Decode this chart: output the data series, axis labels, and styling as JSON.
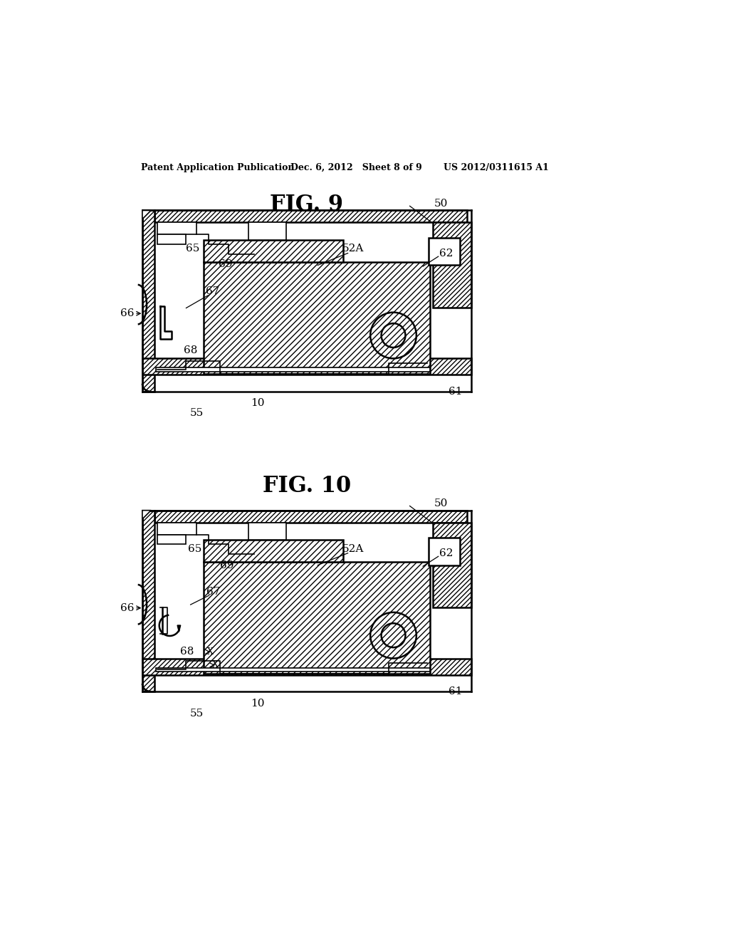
{
  "header_left": "Patent Application Publication",
  "header_mid": "Dec. 6, 2012   Sheet 8 of 9",
  "header_right": "US 2012/0311615 A1",
  "fig9_title": "FIG. 9",
  "fig10_title": "FIG. 10",
  "bg_color": "#ffffff",
  "line_color": "#000000"
}
